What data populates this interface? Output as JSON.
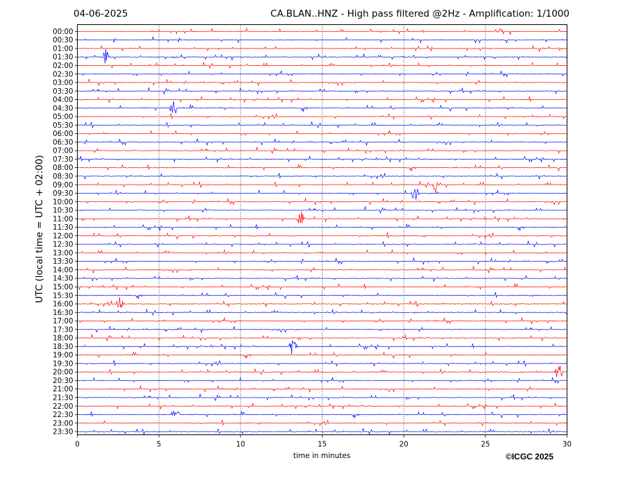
{
  "header": {
    "date": "04-06-2025",
    "title": "CA.BLAN..HNZ - High pass filtered @2Hz - Amplification: 1/1000"
  },
  "footer": {
    "copyright": "©ICGC 2025"
  },
  "chart_data": {
    "type": "line",
    "title": "CA.BLAN..HNZ - High pass filtered @2Hz - Amplification: 1/1000",
    "xlabel": "time in minutes",
    "ylabel": "UTC (local time = UTC + 02:00)",
    "xlim": [
      0,
      30
    ],
    "x_ticks": [
      0,
      5,
      10,
      15,
      20,
      25,
      30
    ],
    "grid": "vertical dotted lines at 5-minute intervals",
    "row_labels": [
      "00:00",
      "00:30",
      "01:00",
      "01:30",
      "02:00",
      "02:30",
      "03:00",
      "03:30",
      "04:00",
      "04:30",
      "05:00",
      "05:30",
      "06:00",
      "06:30",
      "07:00",
      "07:30",
      "08:00",
      "08:30",
      "09:00",
      "09:30",
      "10:00",
      "10:30",
      "11:00",
      "11:30",
      "12:00",
      "12:30",
      "13:00",
      "13:30",
      "14:00",
      "14:30",
      "15:00",
      "15:30",
      "16:00",
      "16:30",
      "17:00",
      "17:30",
      "18:00",
      "18:30",
      "19:00",
      "19:30",
      "20:00",
      "20:30",
      "21:00",
      "21:30",
      "22:00",
      "22:30",
      "23:00",
      "23:30"
    ],
    "trace_colors": [
      "#ff0000",
      "#0000ff"
    ],
    "events": [
      {
        "row": "01:30",
        "minute": 1.7
      },
      {
        "row": "04:30",
        "minute": 5.9
      },
      {
        "row": "09:00",
        "minute": 22.0
      },
      {
        "row": "09:30",
        "minute": 20.7
      },
      {
        "row": "11:00",
        "minute": 13.7
      },
      {
        "row": "16:00",
        "minute": 2.6
      },
      {
        "row": "18:30",
        "minute": 13.2
      },
      {
        "row": "20:00",
        "minute": 29.5
      },
      {
        "row": "22:30",
        "minute": 6.0
      }
    ]
  }
}
